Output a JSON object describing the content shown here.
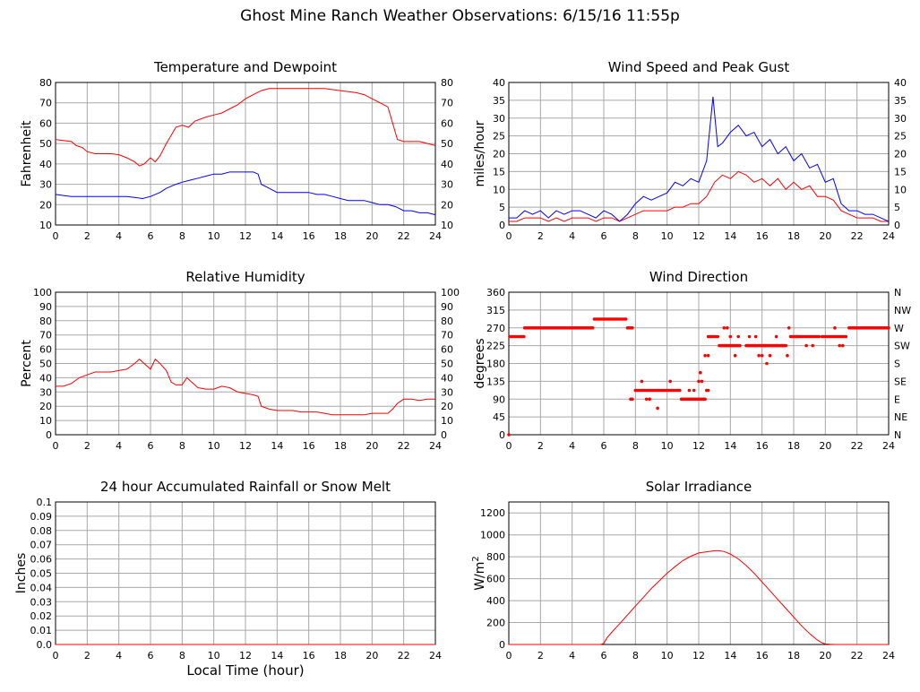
{
  "page": {
    "title": "Ghost Mine Ranch Weather Observations: 6/15/16 11:55p"
  },
  "chart_data": [
    {
      "id": "temp",
      "type": "line",
      "title": "Temperature and Dewpoint",
      "ylabel": "Fahrenheit",
      "xlabel": "",
      "xlim": [
        0,
        24
      ],
      "ylim": [
        10,
        80
      ],
      "xticks": [
        0,
        2,
        4,
        6,
        8,
        10,
        12,
        14,
        16,
        18,
        20,
        22,
        24
      ],
      "yticks": [
        10,
        20,
        30,
        40,
        50,
        60,
        70,
        80
      ],
      "right_axis": true,
      "grid": true,
      "series": [
        {
          "color": "#ff0000",
          "x": [
            0,
            0.5,
            1,
            1.3,
            1.7,
            2,
            2.5,
            3,
            3.5,
            4,
            4.5,
            5,
            5.3,
            5.6,
            6,
            6.3,
            6.6,
            7,
            7.3,
            7.6,
            8,
            8.4,
            8.8,
            9.5,
            10,
            10.5,
            11,
            11.5,
            12,
            12.5,
            13,
            13.5,
            14,
            14.5,
            15,
            15.5,
            16,
            16.5,
            17,
            17.5,
            18,
            18.5,
            19,
            19.5,
            20,
            20.5,
            21,
            21.3,
            21.6,
            22,
            22.5,
            23,
            23.5,
            24
          ],
          "y": [
            52,
            51.5,
            51,
            49,
            48,
            46,
            45,
            45,
            45,
            44.5,
            43,
            41,
            39,
            40,
            43,
            41,
            44,
            50,
            54,
            58,
            59,
            58,
            61,
            63,
            64,
            65,
            67,
            69,
            72,
            74,
            76,
            77,
            77,
            77,
            77,
            77,
            77,
            77,
            77,
            76.5,
            76,
            75.5,
            75,
            74,
            72,
            70,
            68,
            60,
            52,
            51,
            51,
            51,
            50,
            49
          ]
        },
        {
          "color": "#0000ff",
          "x": [
            0,
            0.5,
            1,
            1.5,
            2,
            2.5,
            3,
            3.5,
            4,
            4.5,
            5,
            5.5,
            6,
            6.3,
            6.6,
            7,
            7.3,
            7.6,
            8,
            8.5,
            9,
            9.5,
            10,
            10.5,
            11,
            11.5,
            12,
            12.5,
            12.8,
            13,
            13.5,
            14,
            14.5,
            15,
            15.5,
            16,
            16.5,
            17,
            17.5,
            18,
            18.5,
            19,
            19.5,
            20,
            20.5,
            21,
            21.5,
            22,
            22.5,
            23,
            23.5,
            24
          ],
          "y": [
            25,
            24.5,
            24,
            24,
            24,
            24,
            24,
            24,
            24,
            24,
            23.5,
            23,
            24,
            25,
            26,
            28,
            29,
            30,
            31,
            32,
            33,
            34,
            35,
            35,
            36,
            36,
            36,
            36,
            35,
            30,
            28,
            26,
            26,
            26,
            26,
            26,
            25,
            25,
            24,
            23,
            22,
            22,
            22,
            21,
            20,
            20,
            19,
            17,
            17,
            16,
            16,
            15
          ]
        }
      ]
    },
    {
      "id": "wind",
      "type": "line",
      "title": "Wind Speed and Peak Gust",
      "ylabel": "miles/hour",
      "xlabel": "",
      "xlim": [
        0,
        24
      ],
      "ylim": [
        0,
        40
      ],
      "xticks": [
        0,
        2,
        4,
        6,
        8,
        10,
        12,
        14,
        16,
        18,
        20,
        22,
        24
      ],
      "yticks": [
        0,
        5,
        10,
        15,
        20,
        25,
        30,
        35,
        40
      ],
      "right_axis": true,
      "grid": true,
      "series": [
        {
          "color": "#ff0000",
          "x": [
            0,
            0.5,
            1,
            1.5,
            2,
            2.5,
            3,
            3.5,
            4,
            4.5,
            5,
            5.5,
            6,
            6.5,
            7,
            7.5,
            8,
            8.5,
            9,
            9.5,
            10,
            10.5,
            11,
            11.5,
            12,
            12.5,
            13,
            13.5,
            14,
            14.5,
            15,
            15.5,
            16,
            16.5,
            17,
            17.5,
            18,
            18.5,
            19,
            19.5,
            20,
            20.5,
            21,
            21.5,
            22,
            22.5,
            23,
            23.5,
            24
          ],
          "y": [
            1,
            1,
            2,
            2,
            2,
            1,
            2,
            1,
            2,
            2,
            2,
            1,
            2,
            2,
            1,
            2,
            3,
            4,
            4,
            4,
            4,
            5,
            5,
            6,
            6,
            8,
            12,
            14,
            13,
            15,
            14,
            12,
            13,
            11,
            13,
            10,
            12,
            10,
            11,
            8,
            8,
            7,
            4,
            3,
            2,
            2,
            2,
            1,
            1
          ]
        },
        {
          "color": "#0000ff",
          "x": [
            0,
            0.5,
            1,
            1.5,
            2,
            2.5,
            3,
            3.5,
            4,
            4.5,
            5,
            5.5,
            6,
            6.5,
            7,
            7.5,
            8,
            8.5,
            9,
            9.5,
            10,
            10.5,
            11,
            11.5,
            12,
            12.5,
            12.9,
            13.2,
            13.5,
            14,
            14.5,
            15,
            15.5,
            16,
            16.5,
            17,
            17.5,
            18,
            18.5,
            19,
            19.5,
            20,
            20.5,
            21,
            21.5,
            22,
            22.5,
            23,
            23.5,
            24
          ],
          "y": [
            2,
            2,
            4,
            3,
            4,
            2,
            4,
            3,
            4,
            4,
            3,
            2,
            4,
            3,
            1,
            3,
            6,
            8,
            7,
            8,
            9,
            12,
            11,
            13,
            12,
            18,
            36,
            22,
            23,
            26,
            28,
            25,
            26,
            22,
            24,
            20,
            22,
            18,
            20,
            16,
            17,
            12,
            13,
            6,
            4,
            4,
            3,
            3,
            2,
            1
          ]
        }
      ]
    },
    {
      "id": "rh",
      "type": "line",
      "title": "Relative Humidity",
      "ylabel": "Percent",
      "xlabel": "",
      "xlim": [
        0,
        24
      ],
      "ylim": [
        0,
        100
      ],
      "xticks": [
        0,
        2,
        4,
        6,
        8,
        10,
        12,
        14,
        16,
        18,
        20,
        22,
        24
      ],
      "yticks": [
        0,
        10,
        20,
        30,
        40,
        50,
        60,
        70,
        80,
        90,
        100
      ],
      "right_axis": true,
      "grid": true,
      "series": [
        {
          "color": "#ff0000",
          "x": [
            0,
            0.5,
            1,
            1.5,
            2,
            2.5,
            3,
            3.5,
            4,
            4.5,
            5,
            5.3,
            5.6,
            6,
            6.3,
            6.6,
            7,
            7.3,
            7.6,
            8,
            8.3,
            8.6,
            9,
            9.5,
            10,
            10.5,
            11,
            11.5,
            12,
            12.5,
            12.8,
            13,
            13.5,
            14,
            14.5,
            15,
            15.5,
            16,
            16.5,
            17,
            17.5,
            18,
            18.5,
            19,
            19.5,
            20,
            20.5,
            21,
            21.3,
            21.6,
            22,
            22.5,
            23,
            23.5,
            24
          ],
          "y": [
            34,
            34,
            36,
            40,
            42,
            44,
            44,
            44,
            45,
            46,
            50,
            53,
            50,
            46,
            53,
            50,
            45,
            37,
            35,
            35,
            40,
            37,
            33,
            32,
            32,
            34,
            33,
            30,
            29,
            28,
            27,
            20,
            18,
            17,
            17,
            17,
            16,
            16,
            16,
            15,
            14,
            14,
            14,
            14,
            14,
            15,
            15,
            15,
            18,
            22,
            25,
            25,
            24,
            25,
            25
          ]
        }
      ]
    },
    {
      "id": "wdir",
      "type": "scatter",
      "title": "Wind Direction",
      "ylabel": "degrees",
      "xlabel": "",
      "xlim": [
        0,
        24
      ],
      "ylim": [
        0,
        360
      ],
      "xticks": [
        0,
        2,
        4,
        6,
        8,
        10,
        12,
        14,
        16,
        18,
        20,
        22,
        24
      ],
      "yticks": [
        0,
        45,
        90,
        135,
        180,
        225,
        270,
        315,
        360
      ],
      "right_ticks": [
        "N",
        "NE",
        "E",
        "SE",
        "S",
        "SW",
        "W",
        "NW",
        "N"
      ],
      "grid": true,
      "series": [
        {
          "color": "#ff0000",
          "segments": [
            {
              "x0": 0.05,
              "x1": 0.95,
              "y": 248
            },
            {
              "x0": 1.0,
              "x1": 5.3,
              "y": 270
            },
            {
              "x0": 5.4,
              "x1": 7.4,
              "y": 292
            },
            {
              "x0": 7.5,
              "x1": 7.8,
              "y": 270
            },
            {
              "x0": 8.0,
              "x1": 9.2,
              "y": 112
            },
            {
              "x0": 9.3,
              "x1": 10.8,
              "y": 112
            },
            {
              "x0": 10.9,
              "x1": 12.4,
              "y": 90
            },
            {
              "x0": 12.6,
              "x1": 13.2,
              "y": 248
            },
            {
              "x0": 13.4,
              "x1": 14.6,
              "y": 225
            },
            {
              "x0": 15.0,
              "x1": 17.5,
              "y": 225
            },
            {
              "x0": 17.8,
              "x1": 19.6,
              "y": 248
            },
            {
              "x0": 19.8,
              "x1": 21.3,
              "y": 248
            },
            {
              "x0": 21.5,
              "x1": 24.0,
              "y": 270
            }
          ],
          "points": [
            [
              0.0,
              0
            ],
            [
              7.7,
              90
            ],
            [
              7.8,
              90
            ],
            [
              8.4,
              135
            ],
            [
              8.7,
              90
            ],
            [
              8.9,
              90
            ],
            [
              9.4,
              67
            ],
            [
              10.2,
              135
            ],
            [
              11.4,
              112
            ],
            [
              11.7,
              112
            ],
            [
              12.0,
              135
            ],
            [
              12.1,
              157
            ],
            [
              12.2,
              135
            ],
            [
              12.3,
              90
            ],
            [
              12.5,
              112
            ],
            [
              12.6,
              112
            ],
            [
              12.4,
              200
            ],
            [
              12.6,
              200
            ],
            [
              13.3,
              225
            ],
            [
              13.6,
              270
            ],
            [
              13.8,
              270
            ],
            [
              14.0,
              248
            ],
            [
              14.3,
              200
            ],
            [
              14.5,
              248
            ],
            [
              15.2,
              248
            ],
            [
              15.6,
              248
            ],
            [
              15.8,
              200
            ],
            [
              16.0,
              200
            ],
            [
              16.2,
              225
            ],
            [
              16.3,
              180
            ],
            [
              16.5,
              200
            ],
            [
              16.9,
              248
            ],
            [
              17.3,
              225
            ],
            [
              17.6,
              200
            ],
            [
              17.7,
              270
            ],
            [
              18.2,
              248
            ],
            [
              18.8,
              225
            ],
            [
              19.2,
              225
            ],
            [
              20.6,
              270
            ],
            [
              20.9,
              225
            ],
            [
              21.1,
              225
            ]
          ]
        }
      ]
    },
    {
      "id": "rain",
      "type": "line",
      "title": "24 hour Accumulated Rainfall or Snow Melt",
      "ylabel": "Inches",
      "xlabel": "Local Time (hour)",
      "xlim": [
        0,
        24
      ],
      "ylim": [
        0,
        0.1
      ],
      "xticks": [
        0,
        2,
        4,
        6,
        8,
        10,
        12,
        14,
        16,
        18,
        20,
        22,
        24
      ],
      "yticks": [
        "0.0",
        "0.01",
        "0.02",
        "0.03",
        "0.04",
        "0.05",
        "0.06",
        "0.07",
        "0.08",
        "0.09",
        "0.1"
      ],
      "right_axis": false,
      "grid": true,
      "series": [
        {
          "color": "#ff0000",
          "x": [
            0,
            24
          ],
          "y": [
            0,
            0
          ]
        }
      ]
    },
    {
      "id": "solar",
      "type": "line",
      "title": "Solar Irradiance",
      "ylabel": "W/m",
      "ylabel_sup": "2",
      "xlabel": "",
      "xlim": [
        0,
        24
      ],
      "ylim": [
        0,
        1300
      ],
      "xticks": [
        0,
        2,
        4,
        6,
        8,
        10,
        12,
        14,
        16,
        18,
        20,
        22,
        24
      ],
      "yticks": [
        0,
        200,
        400,
        600,
        800,
        1000,
        1200
      ],
      "right_axis": false,
      "grid": true,
      "series": [
        {
          "color": "#ff0000",
          "x": [
            0,
            5.8,
            6.0,
            6.2,
            6.5,
            7,
            7.5,
            8,
            8.5,
            9,
            9.5,
            10,
            10.5,
            11,
            11.5,
            12,
            12.5,
            13,
            13.3,
            13.6,
            14,
            14.5,
            15,
            15.5,
            16,
            16.5,
            17,
            17.5,
            18,
            18.5,
            19,
            19.5,
            19.8,
            20.0,
            20.3,
            20.6,
            24
          ],
          "y": [
            0,
            0,
            10,
            60,
            110,
            190,
            270,
            350,
            430,
            510,
            580,
            650,
            710,
            765,
            805,
            835,
            845,
            855,
            855,
            848,
            825,
            780,
            720,
            650,
            570,
            490,
            410,
            330,
            250,
            170,
            100,
            40,
            15,
            5,
            2,
            0,
            0
          ]
        }
      ]
    }
  ]
}
